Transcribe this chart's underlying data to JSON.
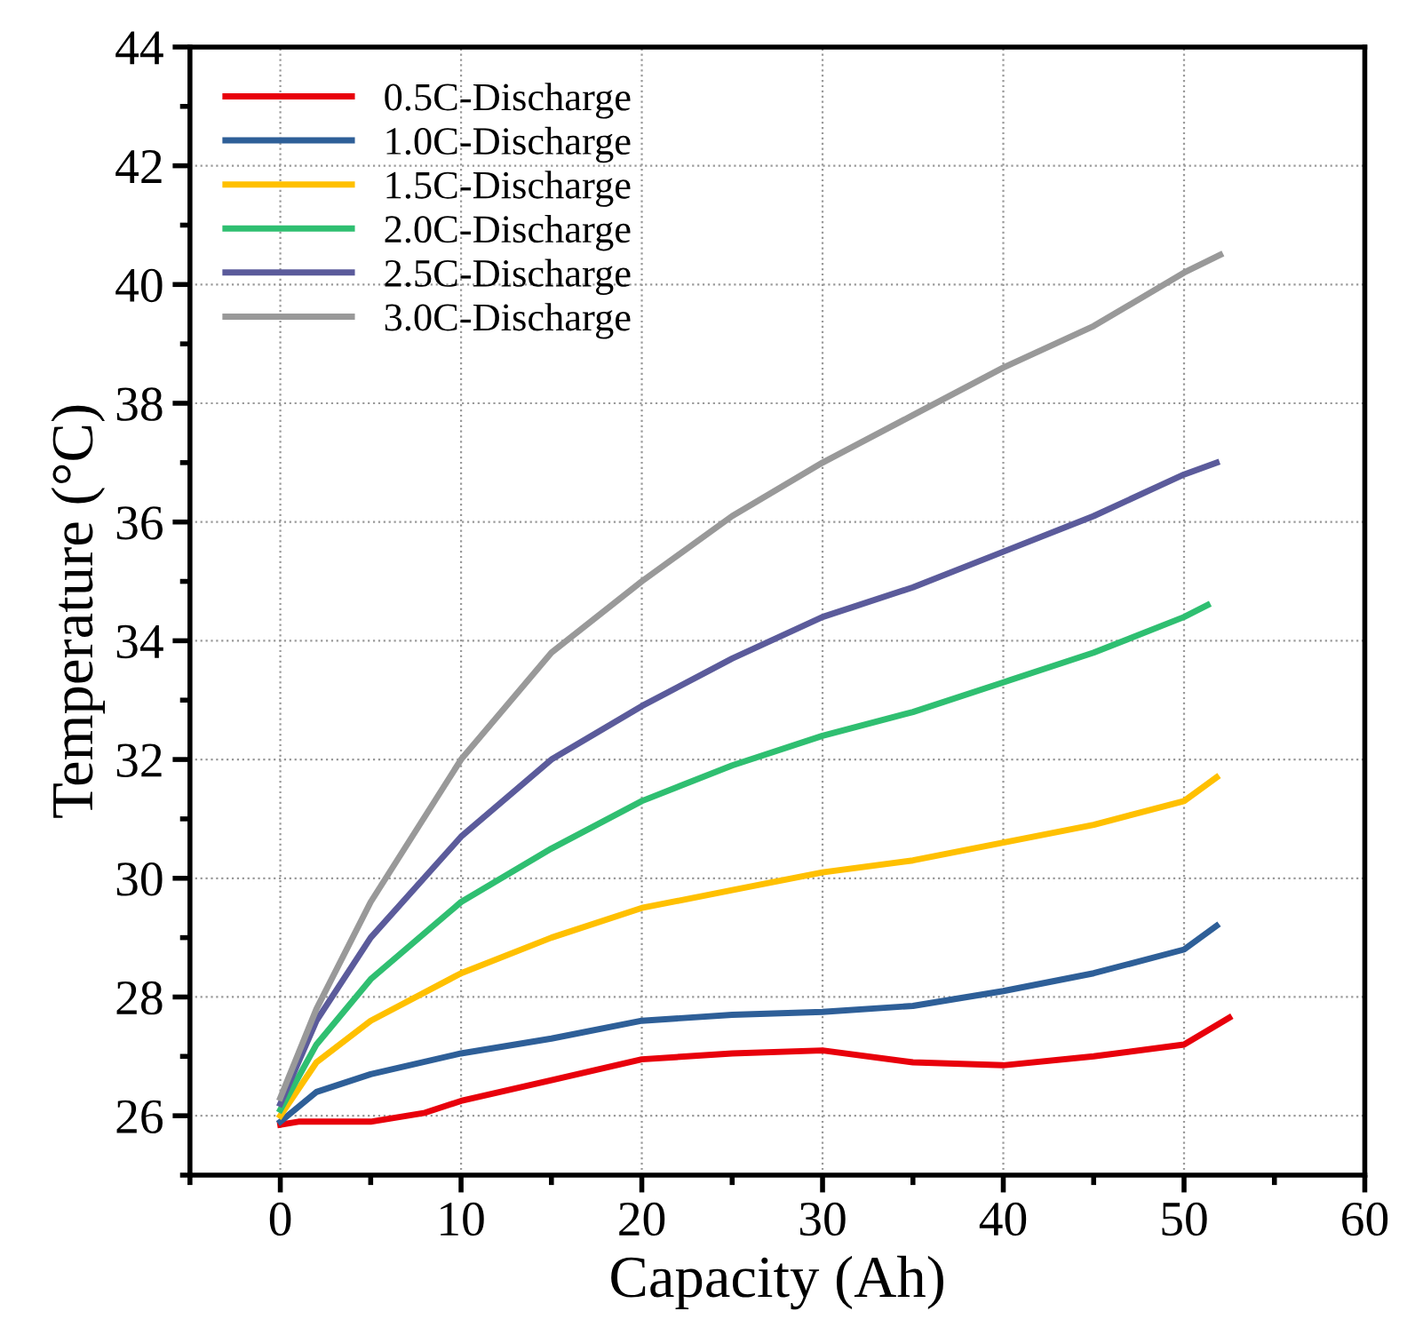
{
  "chart_data": {
    "type": "line",
    "xlabel": "Capacity (Ah)",
    "ylabel": "Temperature (°C)",
    "xlim": [
      -5,
      60
    ],
    "xticks": [
      0,
      10,
      20,
      30,
      40,
      50,
      60
    ],
    "ylim": [
      25,
      44
    ],
    "yticks": [
      26,
      28,
      30,
      32,
      34,
      36,
      38,
      40,
      42,
      44
    ],
    "grid": true,
    "legend": "top left",
    "marker": "none",
    "line_style": "solid",
    "series": [
      {
        "name": "0.5C-Discharge",
        "color": "#e8000b",
        "x": [
          0,
          1,
          5,
          8,
          10,
          15,
          20,
          25,
          30,
          35,
          40,
          45,
          50,
          52.5
        ],
        "values": [
          25.85,
          25.9,
          25.9,
          26.05,
          26.25,
          26.6,
          26.95,
          27.05,
          27.1,
          26.9,
          26.85,
          27.0,
          27.2,
          27.65
        ]
      },
      {
        "name": "1.0C-Discharge",
        "color": "#2e5f98",
        "x": [
          0,
          2,
          5,
          10,
          15,
          20,
          25,
          30,
          35,
          40,
          45,
          50,
          51.8
        ],
        "values": [
          25.9,
          26.4,
          26.7,
          27.05,
          27.3,
          27.6,
          27.7,
          27.75,
          27.85,
          28.1,
          28.4,
          28.8,
          29.2
        ]
      },
      {
        "name": "1.5C-Discharge",
        "color": "#ffc000",
        "x": [
          0,
          2,
          5,
          10,
          15,
          20,
          25,
          30,
          35,
          40,
          45,
          50,
          51.8
        ],
        "values": [
          26.0,
          26.9,
          27.6,
          28.4,
          29.0,
          29.5,
          29.8,
          30.1,
          30.3,
          30.6,
          30.9,
          31.3,
          31.7
        ]
      },
      {
        "name": "2.0C-Discharge",
        "color": "#2fbf71",
        "x": [
          0,
          2,
          5,
          10,
          15,
          20,
          25,
          30,
          35,
          40,
          45,
          50,
          51.3
        ],
        "values": [
          26.1,
          27.2,
          28.3,
          29.6,
          30.5,
          31.3,
          31.9,
          32.4,
          32.8,
          33.3,
          33.8,
          34.4,
          34.6
        ]
      },
      {
        "name": "2.5C-Discharge",
        "color": "#5b5b9b",
        "x": [
          0,
          2,
          5,
          10,
          15,
          20,
          25,
          30,
          35,
          40,
          45,
          50,
          51.8
        ],
        "values": [
          26.2,
          27.6,
          29.0,
          30.7,
          32.0,
          32.9,
          33.7,
          34.4,
          34.9,
          35.5,
          36.1,
          36.8,
          37.0
        ]
      },
      {
        "name": "3.0C-Discharge",
        "color": "#999999",
        "x": [
          0,
          2,
          5,
          10,
          15,
          20,
          25,
          30,
          35,
          40,
          45,
          50,
          52
        ],
        "values": [
          26.3,
          27.8,
          29.6,
          32.0,
          33.8,
          35.0,
          36.1,
          37.0,
          37.8,
          38.6,
          39.3,
          40.2,
          40.5
        ]
      }
    ]
  }
}
